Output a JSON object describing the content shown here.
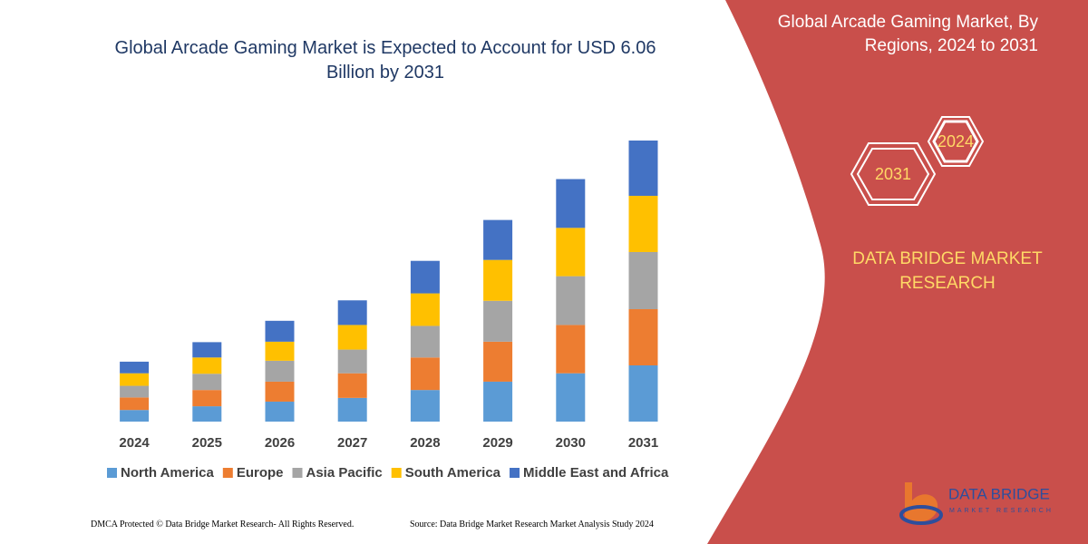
{
  "chart_data": {
    "type": "bar",
    "stacked": true,
    "title": "Global Arcade Gaming Market is Expected to Account for USD 6.06 Billion by 2031",
    "categories": [
      "2024",
      "2025",
      "2026",
      "2027",
      "2028",
      "2029",
      "2030",
      "2031"
    ],
    "series": [
      {
        "name": "North America",
        "color": "#5b9bd5",
        "values": [
          0.25,
          0.33,
          0.43,
          0.51,
          0.68,
          0.86,
          1.04,
          1.21
        ]
      },
      {
        "name": "Europe",
        "color": "#ed7d31",
        "values": [
          0.27,
          0.35,
          0.43,
          0.53,
          0.7,
          0.86,
          1.04,
          1.21
        ]
      },
      {
        "name": "Asia Pacific",
        "color": "#a5a5a5",
        "values": [
          0.25,
          0.35,
          0.45,
          0.51,
          0.68,
          0.88,
          1.05,
          1.23
        ]
      },
      {
        "name": "South America",
        "color": "#ffc000",
        "values": [
          0.27,
          0.35,
          0.41,
          0.53,
          0.7,
          0.88,
          1.04,
          1.21
        ]
      },
      {
        "name": "Middle East and Africa",
        "color": "#4472c4",
        "values": [
          0.25,
          0.33,
          0.45,
          0.53,
          0.7,
          0.86,
          1.05,
          1.19
        ]
      }
    ],
    "legend_position": "bottom"
  },
  "panel": {
    "title": "Global Arcade Gaming Market, By Regions, 2024 to 2031",
    "hexagons": [
      "2024",
      "2031"
    ],
    "brand": "DATA BRIDGE MARKET RESEARCH",
    "logo": "DATA BRIDGE",
    "logo_sub": "MARKET RESEARCH"
  },
  "footer": {
    "left": "DMCA Protected © Data Bridge Market Research-  All Rights Reserved.",
    "right": "Source: Data Bridge Market Research  Market Analysis Study 2024"
  }
}
